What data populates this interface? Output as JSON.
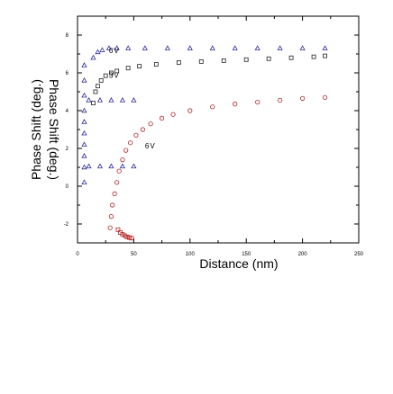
{
  "chart_data": {
    "type": "scatter",
    "title": "",
    "xlabel": "Distance (nm)",
    "ylabel": "Phase Shift (deg.)",
    "xlim": [
      0,
      250
    ],
    "ylim": [
      -3,
      9
    ],
    "x_ticks": [
      "0",
      "50",
      "100",
      "150",
      "200",
      "250"
    ],
    "y_ticks": [
      "-2",
      "0",
      "2",
      "4",
      "6",
      "8"
    ],
    "x_ticks_top": [
      "0",
      "50",
      "100",
      "150",
      "200",
      "250"
    ],
    "y_ticks_right": [
      "-2",
      "0",
      "2",
      "4",
      "6",
      "8"
    ],
    "grid": false,
    "series": [
      {
        "name": "0V",
        "marker": "open-triangle",
        "color": "#2c2c9e",
        "x": [
          14,
          18,
          22,
          28,
          35,
          45,
          60,
          80,
          100,
          120,
          140,
          160,
          180,
          200,
          220
        ],
        "y": [
          6.8,
          7.1,
          7.2,
          7.3,
          7.3,
          7.3,
          7.3,
          7.3,
          7.3,
          7.3,
          7.3,
          7.3,
          7.3,
          7.3,
          7.3
        ]
      },
      {
        "name": "3V",
        "marker": "open-square",
        "color": "#222222",
        "x": [
          14,
          16,
          18,
          21,
          25,
          30,
          35,
          45,
          55,
          70,
          90,
          110,
          130,
          150,
          170,
          190,
          210,
          220
        ],
        "y": [
          4.4,
          5.0,
          5.3,
          5.6,
          5.85,
          6.0,
          6.1,
          6.25,
          6.35,
          6.45,
          6.55,
          6.6,
          6.65,
          6.7,
          6.75,
          6.8,
          6.85,
          6.9
        ]
      },
      {
        "name": "6V",
        "marker": "open-circle",
        "color": "#b52020",
        "x": [
          29,
          30,
          31,
          33,
          35,
          37,
          40,
          43,
          47,
          52,
          58,
          65,
          75,
          85,
          100,
          120,
          140,
          160,
          180,
          200,
          220
        ],
        "y": [
          -2.2,
          -1.6,
          -1.0,
          -0.4,
          0.2,
          0.8,
          1.4,
          1.9,
          2.3,
          2.7,
          3.0,
          3.3,
          3.6,
          3.8,
          4.0,
          4.2,
          4.35,
          4.45,
          4.55,
          4.65,
          4.7
        ]
      },
      {
        "name": "",
        "marker": "open-square",
        "color": "#b52020",
        "x": [
          36,
          38,
          40,
          42,
          44,
          46,
          48
        ],
        "y": [
          -2.3,
          -2.45,
          -2.55,
          -2.62,
          -2.68,
          -2.72,
          -2.75
        ]
      },
      {
        "name": "",
        "marker": "open-triangle",
        "color": "#2c2c9e",
        "x": [
          6,
          6,
          6,
          6,
          6,
          6,
          6,
          6,
          6,
          6
        ],
        "y": [
          0.2,
          1.0,
          1.6,
          2.2,
          2.8,
          3.4,
          4.0,
          4.8,
          5.6,
          6.4
        ]
      },
      {
        "name": "",
        "marker": "open-triangle",
        "color": "#2c2c9e",
        "x": [
          10,
          20,
          30,
          40,
          50
        ],
        "y": [
          1.05,
          1.05,
          1.05,
          1.05,
          1.05
        ]
      },
      {
        "name": "",
        "marker": "open-triangle",
        "color": "#2c2c9e",
        "x": [
          10,
          20,
          30,
          40,
          50
        ],
        "y": [
          4.55,
          4.55,
          4.55,
          4.55,
          4.55
        ]
      }
    ],
    "annotations": [
      {
        "text": "0V",
        "x": 28,
        "y": 7.05
      },
      {
        "text": "3V",
        "x": 28,
        "y": 5.75
      },
      {
        "text": "6V",
        "x": 60,
        "y": 2.0
      }
    ]
  }
}
